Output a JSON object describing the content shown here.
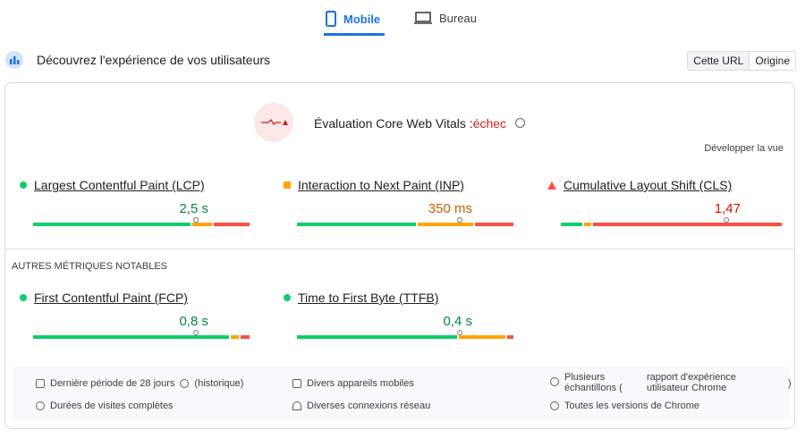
{
  "tabs": [
    "Mobile",
    "Bureau"
  ],
  "header": {
    "title": "Découvrez l'expérience de vos utilisateurs",
    "buttons": [
      "Cette URL",
      "Origine"
    ]
  },
  "assessment": {
    "label": "Évaluation Core Web Vitals :",
    "status": "échec",
    "expand": "Développer la vue"
  },
  "core_metrics": [
    {
      "name": "Largest Contentful Paint (LCP)",
      "value": "2,5 s",
      "rating": "good",
      "distribution": [
        74,
        9,
        17
      ]
    },
    {
      "name": "Interaction to Next Paint (INP)",
      "value": "350 ms",
      "rating": "average",
      "distribution": [
        56,
        26,
        18
      ]
    },
    {
      "name": "Cumulative Layout Shift (CLS)",
      "value": "1,47",
      "rating": "poor",
      "distribution": [
        10,
        3,
        87
      ]
    }
  ],
  "other_title": "AUTRES MÉTRIQUES NOTABLES",
  "other_metrics": [
    {
      "name": "First Contentful Paint (FCP)",
      "value": "0,8 s",
      "rating": "good",
      "distribution": [
        92,
        4,
        4
      ]
    },
    {
      "name": "Time to First Byte (TTFB)",
      "value": "0,4 s",
      "rating": "good",
      "distribution": [
        75,
        22,
        3
      ]
    }
  ],
  "footer": {
    "period": "Dernière période de 28 jours",
    "history": "(historique)",
    "visits": "Durées de visites complètes",
    "devices": "Divers appareils mobiles",
    "network": "Diverses connexions réseau",
    "samples": "Plusieurs échantillons (",
    "report": "rapport d'expérience utilisateur Chrome",
    "close": ")",
    "versions": "Toutes les versions de Chrome"
  }
}
